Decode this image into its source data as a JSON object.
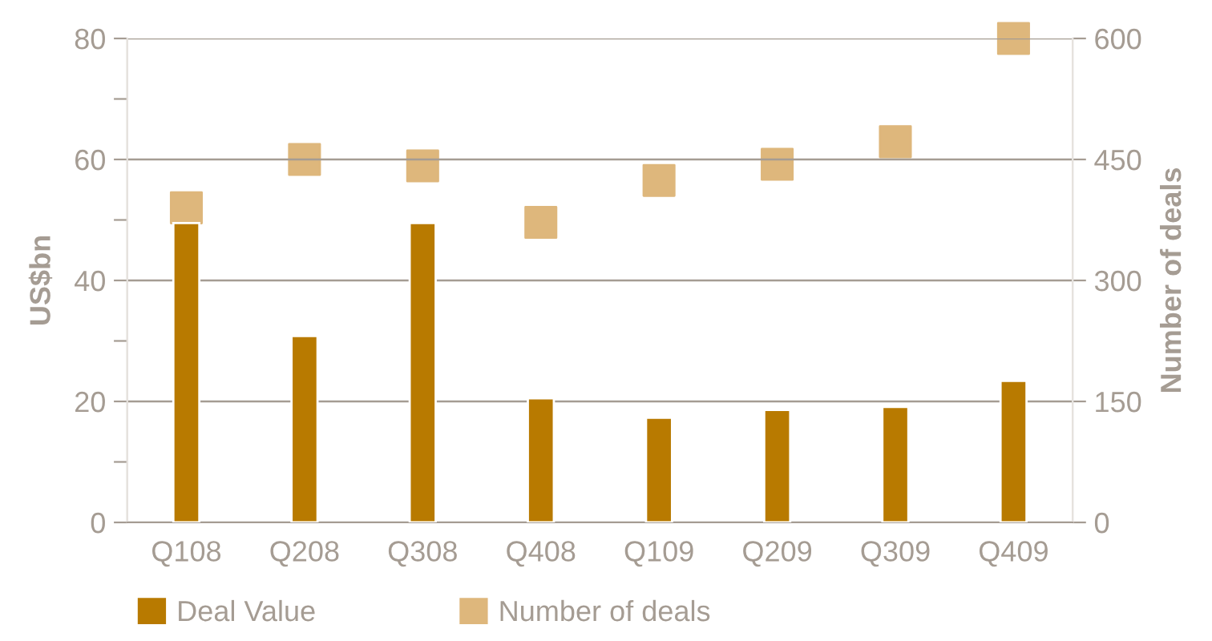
{
  "chart_data": {
    "type": "bar",
    "ylabel": "US$bn",
    "y2label": "Number of deals",
    "categories": [
      "Q108",
      "Q208",
      "Q308",
      "Q408",
      "Q109",
      "Q209",
      "Q309",
      "Q409"
    ],
    "series": [
      {
        "name": "Deal Value",
        "color": "#b87a00",
        "values": [
          49.5,
          30.8,
          49.5,
          20.5,
          17.3,
          18.6,
          19.1,
          23.4
        ]
      },
      {
        "name": "Number of deals",
        "type": "scatter",
        "axis": "y2",
        "color": "#deb77c",
        "values": [
          390,
          450,
          442,
          372,
          424,
          444,
          472,
          600
        ]
      }
    ],
    "ylim": [
      0,
      80
    ],
    "yticks": [
      0,
      {
        "value": 10,
        "label": null
      },
      20,
      {
        "value": 30,
        "label": null
      },
      40,
      {
        "value": 50,
        "label": null
      },
      60,
      {
        "value": 70,
        "label": null
      },
      80
    ],
    "y2lim": [
      0,
      600
    ],
    "y2ticks": [
      0,
      150,
      300,
      450,
      600
    ],
    "grid": "y",
    "legend": "bottom",
    "marker": "square"
  }
}
